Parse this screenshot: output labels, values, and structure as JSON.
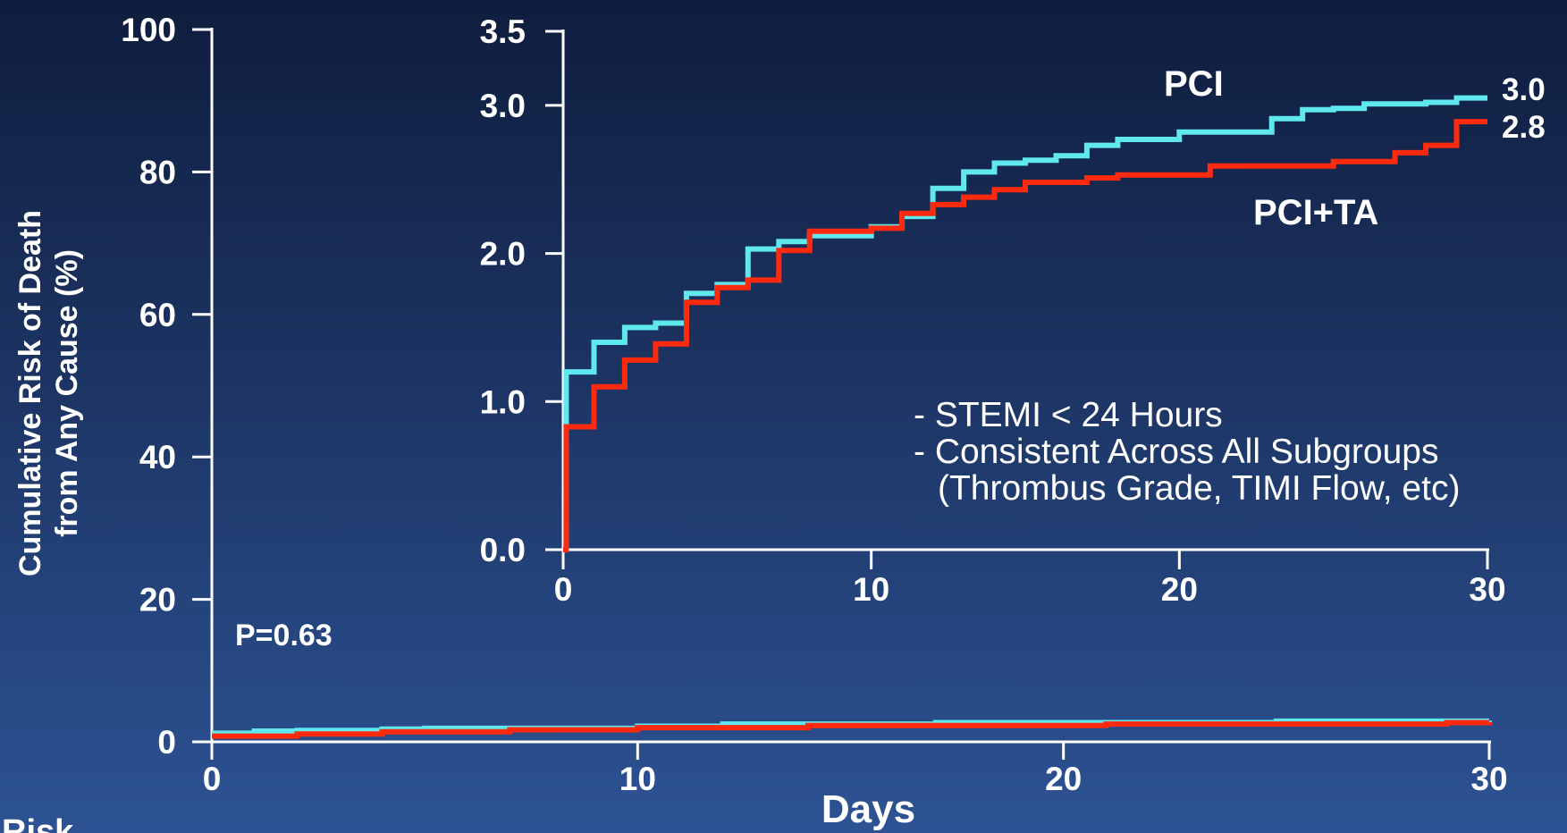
{
  "chart_data": [
    {
      "type": "line",
      "title": "",
      "xlabel": "Days",
      "ylabel": "Cumulative Risk of Death from Any Cause (%)",
      "ylabel_lines": [
        "Cumulative Risk of Death",
        "from Any Cause (%)"
      ],
      "xlim": [
        0,
        30
      ],
      "ylim": [
        0,
        100
      ],
      "x_ticks": [
        0,
        10,
        20,
        30
      ],
      "y_ticks": [
        0,
        20,
        40,
        60,
        80,
        100
      ],
      "annotation": "P=0.63",
      "footer_label": "Risk",
      "grid": false,
      "series": [
        {
          "name": "PCI",
          "color": "#5fe8ee",
          "x": [
            0,
            1,
            2,
            4,
            5,
            10,
            12,
            17,
            25,
            30
          ],
          "y": [
            1.2,
            1.5,
            1.6,
            1.8,
            1.9,
            2.2,
            2.5,
            2.7,
            2.9,
            3.0
          ]
        },
        {
          "name": "PCI+TA",
          "color": "#ff2a0e",
          "x": [
            0,
            2,
            4,
            7,
            10,
            14,
            21,
            29,
            30
          ],
          "y": [
            0.8,
            1.1,
            1.4,
            1.7,
            2.0,
            2.3,
            2.5,
            2.7,
            2.8
          ]
        }
      ]
    },
    {
      "type": "line",
      "title": "",
      "xlabel": "",
      "ylabel": "",
      "xlim": [
        0,
        30
      ],
      "ylim": [
        0,
        3.5
      ],
      "x_ticks": [
        0,
        10,
        20,
        30
      ],
      "y_ticks": [
        "0.0",
        "1.0",
        "2.0",
        "3.0",
        "3.5"
      ],
      "grid": false,
      "end_labels": [
        "3.0",
        "2.8"
      ],
      "notes": [
        "- STEMI < 24 Hours",
        "- Consistent Across All Subgroups",
        "(Thrombus Grade, TIMI Flow, etc)"
      ],
      "series": [
        {
          "name": "PCI",
          "color": "#5fe8ee",
          "x": [
            0,
            0.1,
            1,
            2,
            3,
            4,
            5,
            6,
            7,
            8,
            10,
            11,
            12,
            13,
            14,
            15,
            16,
            17,
            18,
            20,
            23,
            24,
            25,
            26,
            28,
            29,
            30
          ],
          "y": [
            0.0,
            1.2,
            1.4,
            1.5,
            1.53,
            1.73,
            1.79,
            2.03,
            2.08,
            2.12,
            2.18,
            2.25,
            2.44,
            2.55,
            2.61,
            2.63,
            2.66,
            2.73,
            2.77,
            2.82,
            2.91,
            2.97,
            2.98,
            3.01,
            3.02,
            3.05,
            3.05
          ]
        },
        {
          "name": "PCI+TA",
          "color": "#ff2a0e",
          "x": [
            0,
            0.1,
            1,
            2,
            3,
            4,
            5,
            6,
            7,
            8,
            10,
            11,
            12,
            13,
            14,
            15,
            17,
            18,
            21,
            25,
            27,
            28,
            29,
            30
          ],
          "y": [
            0.0,
            0.83,
            1.1,
            1.28,
            1.39,
            1.67,
            1.77,
            1.82,
            2.02,
            2.15,
            2.17,
            2.27,
            2.33,
            2.38,
            2.43,
            2.48,
            2.51,
            2.53,
            2.59,
            2.62,
            2.68,
            2.73,
            2.89,
            2.89
          ]
        }
      ]
    }
  ]
}
